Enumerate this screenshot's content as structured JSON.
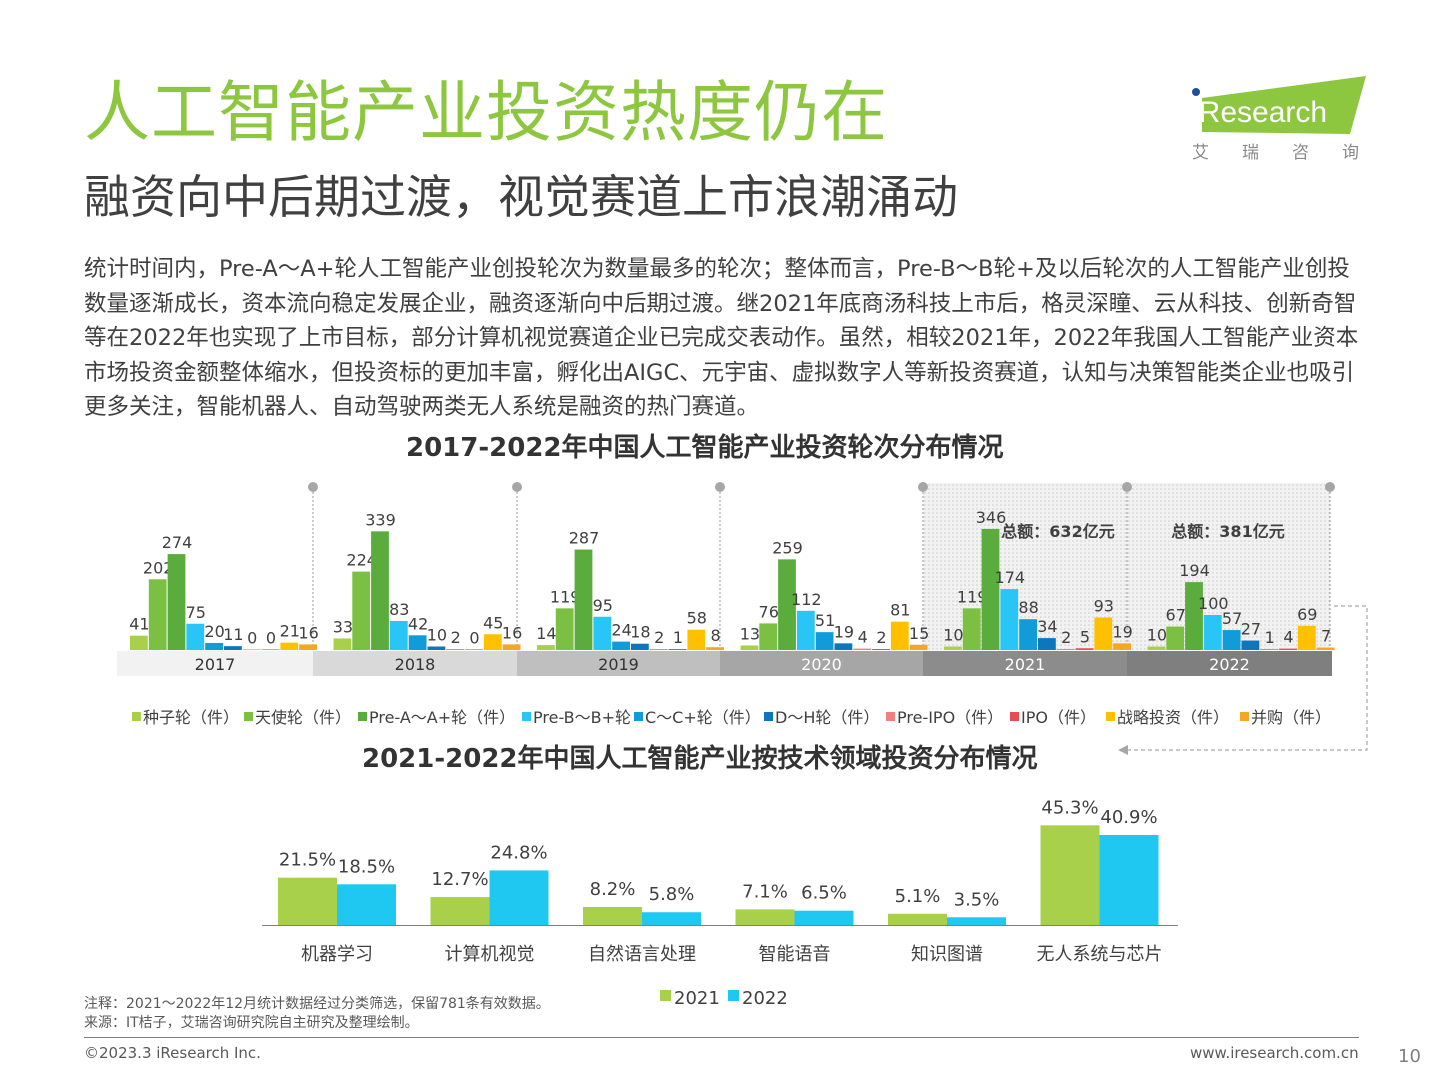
{
  "header": {
    "title": "人工智能产业投资热度仍在",
    "subtitle": "融资向中后期过渡，视觉赛道上市浪潮涌动",
    "logo_text": "iResearch",
    "logo_cn": "艾瑞咨询"
  },
  "body_text": "统计时间内，Pre-A～A+轮人工智能产业创投轮次为数量最多的轮次；整体而言，Pre-B～B轮+及以后轮次的人工智能产业创投数量逐渐成长，资本流向稳定发展企业，融资逐渐向中后期过渡。继2021年底商汤科技上市后，格灵深瞳、云从科技、创新奇智等在2022年也实现了上市目标，部分计算机视觉赛道企业已完成交表动作。虽然，相较2021年，2022年我国人工智能产业资本市场投资金额整体缩水，但投资标的更加丰富，孵化出AIGC、元宇宙、虚拟数字人等新投资赛道，认知与决策智能类企业也吸引更多关注，智能机器人、自动驾驶两类无人系统是融资的热门赛道。",
  "chart_data": [
    {
      "type": "bar",
      "title": "2017-2022年中国人工智能产业投资轮次分布情况",
      "categories": [
        "2017",
        "2018",
        "2019",
        "2020",
        "2021",
        "2022"
      ],
      "series": [
        {
          "name": "种子轮（件）",
          "color": "#a9d04a",
          "values": [
            41,
            33,
            14,
            13,
            10,
            10
          ]
        },
        {
          "name": "天使轮（件）",
          "color": "#7bc043",
          "values": [
            202,
            224,
            119,
            76,
            119,
            67
          ]
        },
        {
          "name": "Pre-A～A+轮（件）",
          "color": "#5aad3c",
          "values": [
            274,
            339,
            287,
            259,
            346,
            194
          ]
        },
        {
          "name": "Pre-B～B+轮",
          "color": "#29c5f6",
          "values": [
            75,
            83,
            95,
            112,
            174,
            100
          ]
        },
        {
          "name": "C～C+轮（件）",
          "color": "#129bd9",
          "values": [
            20,
            42,
            24,
            51,
            88,
            57
          ]
        },
        {
          "name": "D～H轮（件）",
          "color": "#0e76bc",
          "values": [
            11,
            10,
            18,
            19,
            34,
            27
          ]
        },
        {
          "name": "Pre-IPO（件）",
          "color": "#f08080",
          "values": [
            0,
            2,
            2,
            4,
            2,
            1
          ]
        },
        {
          "name": "IPO（件）",
          "color": "#e84c55",
          "values": [
            0,
            0,
            1,
            2,
            5,
            4
          ]
        },
        {
          "name": "战略投资（件）",
          "color": "#ffc000",
          "values": [
            21,
            45,
            58,
            81,
            93,
            69
          ]
        },
        {
          "name": "并购（件）",
          "color": "#f5a623",
          "values": [
            16,
            16,
            8,
            15,
            19,
            7
          ]
        }
      ],
      "annotations": [
        {
          "label": "总额：632亿元",
          "year": "2021"
        },
        {
          "label": "总额：381亿元",
          "year": "2022"
        }
      ]
    },
    {
      "type": "bar",
      "title": "2021-2022年中国人工智能产业按技术领域投资分布情况",
      "categories": [
        "机器学习",
        "计算机视觉",
        "自然语言处理",
        "智能语音",
        "知识图谱",
        "无人系统与芯片"
      ],
      "series": [
        {
          "name": "2021",
          "color": "#a9d04a",
          "values": [
            21.5,
            12.7,
            8.2,
            7.1,
            5.1,
            45.3
          ],
          "labels": [
            "21.5%",
            "12.7%",
            "8.2%",
            "7.1%",
            "5.1%",
            "45.3%"
          ]
        },
        {
          "name": "2022",
          "color": "#1fc8f0",
          "values": [
            18.5,
            24.8,
            5.8,
            6.5,
            3.5,
            40.9
          ],
          "labels": [
            "18.5%",
            "24.8%",
            "5.8%",
            "6.5%",
            "3.5%",
            "40.9%"
          ]
        }
      ]
    }
  ],
  "footer": {
    "note": "注释：2021～2022年12月统计数据经过分类筛选，保留781条有效数据。",
    "source": "来源：IT桔子，艾瑞咨询研究院自主研究及整理绘制。",
    "copyright": "©2023.3 iResearch Inc.",
    "url": "www.iresearch.com.cn",
    "page": "10"
  }
}
